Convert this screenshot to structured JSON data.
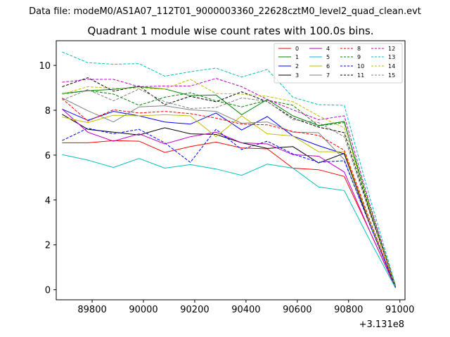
{
  "header": {
    "file_label": "Data file: modeM0/AS1A07_112T01_9000003360_22628cztM0_level2_quad_clean.evt"
  },
  "chart_data": {
    "type": "line",
    "title": "Quadrant 1 module wise count rates with 100.0s bins.",
    "xlabel": "",
    "ylabel": "",
    "x_offset_label": "+3.131e8",
    "xlim": [
      89660,
      91020
    ],
    "ylim": [
      -0.45,
      11.1
    ],
    "x_ticks": [
      89800,
      90000,
      90200,
      90400,
      90600,
      90800,
      91000
    ],
    "x_tick_labels": [
      "89800",
      "90000",
      "90200",
      "90400",
      "90600",
      "90800",
      "91000"
    ],
    "y_ticks": [
      0,
      2,
      4,
      6,
      8,
      10
    ],
    "y_tick_labels": [
      "0",
      "2",
      "4",
      "6",
      "8",
      "10"
    ],
    "x": [
      89683,
      89783,
      89883,
      89983,
      90083,
      90183,
      90283,
      90383,
      90483,
      90583,
      90683,
      90783,
      90883,
      90983
    ],
    "legend_position": "top-right",
    "series": [
      {
        "name": "0",
        "color": "#ff0000",
        "dash": "solid",
        "values": [
          6.55,
          6.55,
          6.65,
          6.62,
          6.12,
          6.38,
          6.58,
          6.32,
          6.28,
          5.42,
          5.35,
          5.05,
          2.6,
          0.08
        ]
      },
      {
        "name": "1",
        "color": "#008000",
        "dash": "solid",
        "values": [
          8.75,
          8.87,
          8.93,
          9.05,
          8.95,
          8.65,
          8.68,
          7.8,
          8.48,
          7.75,
          7.32,
          7.5,
          3.5,
          0.18
        ]
      },
      {
        "name": "2",
        "color": "#0000ff",
        "dash": "solid",
        "values": [
          8.05,
          7.55,
          7.95,
          7.75,
          7.48,
          7.38,
          7.88,
          7.12,
          7.72,
          6.85,
          6.42,
          6.05,
          3.0,
          0.12
        ]
      },
      {
        "name": "3",
        "color": "#000000",
        "dash": "solid",
        "values": [
          7.82,
          7.15,
          7.02,
          6.9,
          7.22,
          6.95,
          6.92,
          6.55,
          6.3,
          6.38,
          5.65,
          6.08,
          2.9,
          0.1
        ]
      },
      {
        "name": "4",
        "color": "#bf00bf",
        "dash": "solid",
        "values": [
          8.05,
          7.02,
          6.62,
          6.95,
          6.5,
          6.82,
          7.02,
          6.55,
          6.5,
          6.02,
          5.95,
          5.25,
          2.6,
          0.1
        ]
      },
      {
        "name": "5",
        "color": "#00bfbf",
        "dash": "solid",
        "values": [
          6.02,
          5.78,
          5.45,
          5.85,
          5.42,
          5.58,
          5.38,
          5.1,
          5.6,
          5.42,
          4.58,
          4.42,
          2.2,
          0.08
        ]
      },
      {
        "name": "6",
        "color": "#bfbf00",
        "dash": "solid",
        "values": [
          7.7,
          7.45,
          7.78,
          7.75,
          7.8,
          7.75,
          6.82,
          7.75,
          6.95,
          6.85,
          6.15,
          6.15,
          3.0,
          0.1
        ]
      },
      {
        "name": "7",
        "color": "#808080",
        "dash": "solid",
        "values": [
          8.55,
          7.98,
          7.48,
          8.15,
          8.2,
          8.02,
          7.95,
          7.42,
          7.48,
          7.02,
          7.0,
          5.8,
          2.9,
          0.12
        ]
      },
      {
        "name": "8",
        "color": "#ff0000",
        "dash": "dashed",
        "values": [
          8.52,
          7.52,
          8.02,
          7.88,
          7.95,
          7.85,
          7.65,
          7.38,
          7.35,
          7.05,
          6.88,
          6.22,
          3.1,
          0.12
        ]
      },
      {
        "name": "9",
        "color": "#008000",
        "dash": "dashed",
        "values": [
          8.72,
          8.88,
          8.72,
          8.22,
          8.58,
          8.78,
          8.42,
          8.15,
          8.45,
          8.22,
          7.3,
          7.45,
          3.7,
          0.15
        ]
      },
      {
        "name": "10",
        "color": "#0000ff",
        "dash": "dashed",
        "values": [
          6.65,
          7.2,
          6.95,
          7.15,
          6.55,
          5.68,
          7.15,
          6.25,
          6.62,
          6.05,
          5.68,
          5.75,
          2.9,
          0.1
        ]
      },
      {
        "name": "11",
        "color": "#000000",
        "dash": "dashed",
        "values": [
          9.05,
          9.45,
          8.85,
          9.08,
          8.25,
          8.62,
          8.38,
          8.82,
          8.38,
          7.65,
          7.25,
          7.0,
          3.5,
          0.15
        ]
      },
      {
        "name": "12",
        "color": "#bf00bf",
        "dash": "dashed",
        "values": [
          9.25,
          9.38,
          9.38,
          9.05,
          9.08,
          9.08,
          9.42,
          9.05,
          8.48,
          8.02,
          7.58,
          7.75,
          3.8,
          0.15
        ]
      },
      {
        "name": "13",
        "color": "#00bfbf",
        "dash": "dashed",
        "values": [
          10.6,
          10.12,
          10.05,
          10.08,
          9.52,
          9.72,
          9.88,
          9.48,
          9.82,
          8.58,
          8.25,
          8.22,
          4.1,
          0.2
        ]
      },
      {
        "name": "14",
        "color": "#bfbf00",
        "dash": "dashed",
        "values": [
          8.72,
          9.05,
          8.98,
          8.98,
          8.95,
          9.38,
          8.75,
          8.72,
          8.62,
          8.38,
          7.75,
          7.22,
          3.6,
          0.15
        ]
      },
      {
        "name": "15",
        "color": "#808080",
        "dash": "dashed",
        "values": [
          8.45,
          8.92,
          8.42,
          8.95,
          8.38,
          8.08,
          8.12,
          8.55,
          8.4,
          7.58,
          7.45,
          6.82,
          3.4,
          0.12
        ]
      }
    ]
  }
}
